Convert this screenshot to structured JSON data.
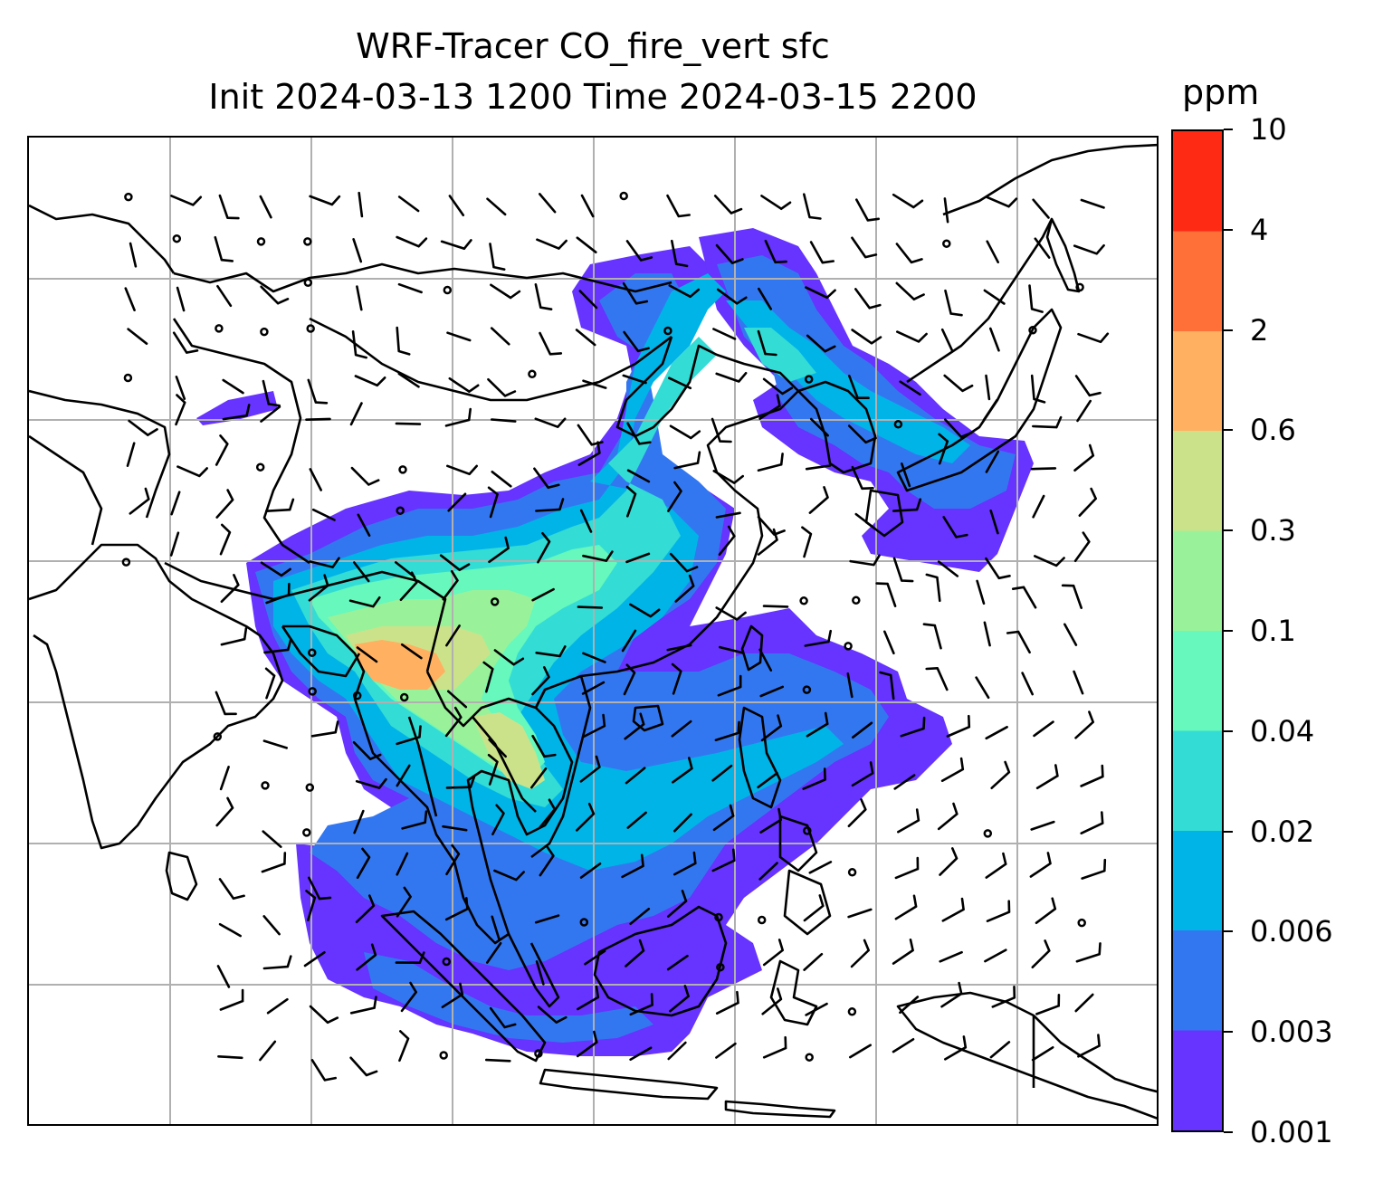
{
  "title_line1": "WRF-Tracer CO_fire_vert sfc",
  "title_line2": "Init 2024-03-13 1200 Time 2024-03-15 2200",
  "colorbar": {
    "unit": "ppm",
    "levels": [
      "0.001",
      "0.003",
      "0.006",
      "0.02",
      "0.04",
      "0.1",
      "0.3",
      "0.6",
      "2",
      "4",
      "10"
    ],
    "colors": [
      "#6633ff",
      "#3377f0",
      "#00b4e8",
      "#33dcd4",
      "#66f8bc",
      "#99f29a",
      "#cce28a",
      "#ffb060",
      "#ff7038",
      "#ff2a14"
    ]
  },
  "map": {
    "gridlines": true,
    "coastline_color": "#000000",
    "grid_color": "#b0b0b0",
    "wind_barbs": true
  }
}
